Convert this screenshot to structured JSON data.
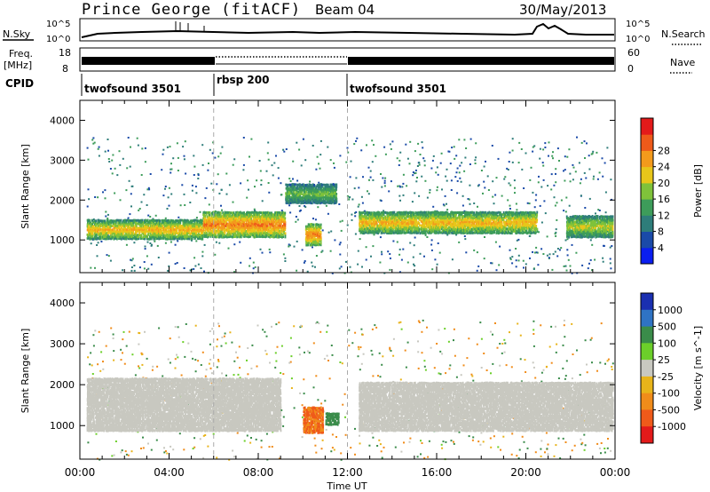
{
  "header": {
    "station": "Prince George (fitACF)",
    "beam": "Beam 04",
    "date": "30/May/2013"
  },
  "strips": {
    "nsky_label": "N.Sky",
    "nsky_ticks": [
      "10^5",
      "10^0"
    ],
    "nsearch_label": "N.Search",
    "freq_label_1": "Freq.",
    "freq_label_2": "[MHz]",
    "freq_ticks_left": [
      "18",
      "8"
    ],
    "freq_ticks_right": [
      "60",
      "0"
    ],
    "nave_label": "Nave",
    "cpid_label": "CPID",
    "cpid_segments": [
      {
        "name": "twofsound 3501",
        "start": 0,
        "end": 6
      },
      {
        "name": "rbsp 200",
        "start": 6,
        "end": 12
      },
      {
        "name": "twofsound 3501",
        "start": 12,
        "end": 24
      }
    ]
  },
  "chart_data": [
    {
      "type": "heatmap",
      "panel": "power",
      "ylabel": "Slant Range [km]",
      "xlabel": "",
      "ylim": [
        180,
        4500
      ],
      "yticks": [
        1000,
        2000,
        3000,
        4000
      ],
      "xlim": [
        0,
        24
      ],
      "xticks": [
        "00:00",
        "04:00",
        "08:00",
        "12:00",
        "16:00",
        "20:00",
        "00:00"
      ],
      "colorbar": {
        "label": "Power [dB]",
        "ticks": [
          "4",
          "8",
          "12",
          "16",
          "20",
          "24",
          "28"
        ],
        "colors": [
          "#0a1ef0",
          "#1a4aa8",
          "#2e7d7a",
          "#3d9c5a",
          "#7fc23a",
          "#e8c61a",
          "#f39a1c",
          "#ee5a1a",
          "#e31a1a"
        ]
      },
      "bands": [
        {
          "t0": 0.3,
          "t1": 5.5,
          "r0": 1050,
          "r1": 1550,
          "power": 24
        },
        {
          "t0": 5.5,
          "t1": 9.2,
          "r0": 1100,
          "r1": 1750,
          "power": 28
        },
        {
          "t0": 9.2,
          "t1": 11.5,
          "r0": 1950,
          "r1": 2450,
          "power": 16
        },
        {
          "t0": 10.1,
          "t1": 10.8,
          "r0": 900,
          "r1": 1450,
          "power": 28
        },
        {
          "t0": 12.5,
          "t1": 20.5,
          "r0": 1200,
          "r1": 1750,
          "power": 24
        },
        {
          "t0": 21.8,
          "t1": 23.9,
          "r0": 1100,
          "r1": 1650,
          "power": 20
        }
      ]
    },
    {
      "type": "heatmap",
      "panel": "velocity",
      "ylabel": "Slant Range [km]",
      "xlabel": "Time UT",
      "ylim": [
        180,
        4500
      ],
      "yticks": [
        1000,
        2000,
        3000,
        4000
      ],
      "xlim": [
        0,
        24
      ],
      "xticks": [
        "00:00",
        "04:00",
        "08:00",
        "12:00",
        "16:00",
        "20:00",
        "00:00"
      ],
      "colorbar": {
        "label": "Velocity [m s^-1]",
        "ticks": [
          "1000",
          "500",
          "100",
          "25",
          "-25",
          "-100",
          "-500",
          "-1000"
        ],
        "colors": [
          "#1a2fb0",
          "#2f73c4",
          "#3a8c4a",
          "#6ccf2a",
          "#c8c8c0",
          "#e8b41a",
          "#f08c1a",
          "#ef5a1a",
          "#e31a1a"
        ]
      },
      "bands": [
        {
          "t0": 0.3,
          "t1": 9.0,
          "r0": 900,
          "r1": 2200,
          "velocity": 0
        },
        {
          "t0": 12.5,
          "t1": 23.9,
          "r0": 900,
          "r1": 2100,
          "velocity": 0
        },
        {
          "t0": 10.0,
          "t1": 10.9,
          "r0": 850,
          "r1": 1500,
          "velocity": -300
        },
        {
          "t0": 11.0,
          "t1": 11.6,
          "r0": 1050,
          "r1": 1350,
          "velocity": 80
        }
      ]
    }
  ]
}
